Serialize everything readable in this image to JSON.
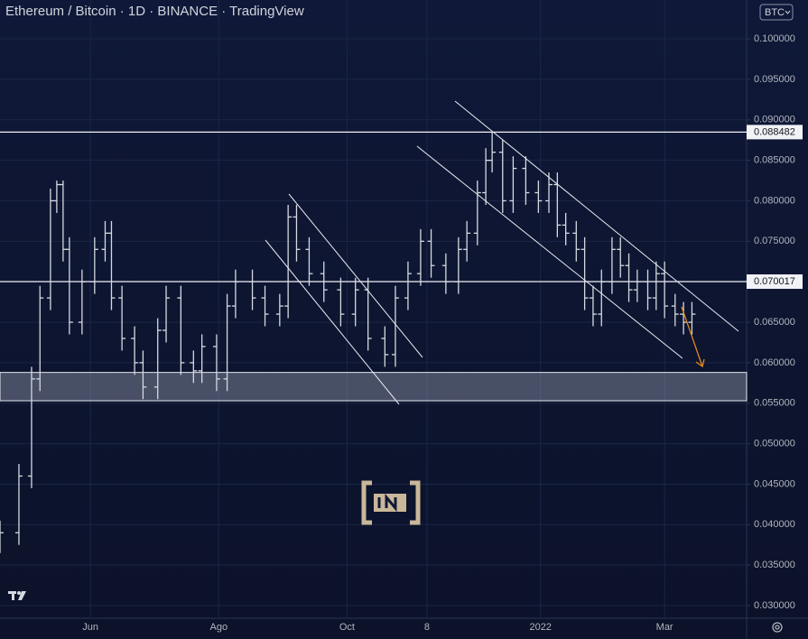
{
  "chart_data": {
    "type": "ohlc",
    "title": "Ethereum / Bitcoin · 1D · BINANCE · TradingView",
    "currency": "BTC",
    "color": "#d6d9e0",
    "grid": true,
    "xlim": [
      0,
      355
    ],
    "xticks": [
      {
        "value": 43,
        "label": "Jun"
      },
      {
        "value": 104,
        "label": "Ago"
      },
      {
        "value": 165,
        "label": "Oct"
      },
      {
        "value": 203,
        "label": "8"
      },
      {
        "value": 257,
        "label": "2022"
      },
      {
        "value": 316,
        "label": "Mar"
      }
    ],
    "ylim": [
      0.02844,
      0.1048
    ],
    "yticks": [
      {
        "value": 0.03,
        "label": "0.030000"
      },
      {
        "value": 0.035,
        "label": "0.035000"
      },
      {
        "value": 0.04,
        "label": "0.040000"
      },
      {
        "value": 0.045,
        "label": "0.045000"
      },
      {
        "value": 0.05,
        "label": "0.050000"
      },
      {
        "value": 0.055,
        "label": "0.055000"
      },
      {
        "value": 0.06,
        "label": "0.060000"
      },
      {
        "value": 0.065,
        "label": "0.065000"
      },
      {
        "value": 0.07,
        "label": "0.070000"
      },
      {
        "value": 0.075,
        "label": "0.075000"
      },
      {
        "value": 0.08,
        "label": "0.080000"
      },
      {
        "value": 0.085,
        "label": "0.085000"
      },
      {
        "value": 0.09,
        "label": "0.090000"
      },
      {
        "value": 0.095,
        "label": "0.095000"
      },
      {
        "value": 0.1,
        "label": "0.100000"
      }
    ],
    "levels": [
      {
        "value": 0.088482,
        "label": "0.088482"
      },
      {
        "value": 0.070017,
        "label": "0.070017"
      }
    ],
    "zone": [
      0.0553,
      0.0588
    ],
    "x": [
      0,
      9,
      15,
      19,
      24,
      27,
      30,
      33,
      39,
      45,
      50,
      53,
      58,
      64,
      68,
      75,
      79,
      86,
      92,
      96,
      103,
      108,
      112,
      120,
      126,
      133,
      137,
      141,
      147,
      154,
      162,
      169,
      175,
      183,
      188,
      194,
      200,
      205,
      212,
      218,
      222,
      227,
      231,
      234,
      239,
      244,
      250,
      256,
      261,
      265,
      269,
      274,
      278,
      282,
      286,
      291,
      295,
      299,
      303,
      308,
      312,
      316,
      321,
      325,
      329
    ],
    "open": [
      0.038,
      0.039,
      0.046,
      0.058,
      0.068,
      0.08,
      0.082,
      0.074,
      0.065,
      0.07,
      0.074,
      0.076,
      0.068,
      0.063,
      0.06,
      0.057,
      0.064,
      0.068,
      0.06,
      0.059,
      0.062,
      0.058,
      0.067,
      0.07,
      0.068,
      0.066,
      0.067,
      0.078,
      0.074,
      0.071,
      0.069,
      0.066,
      0.069,
      0.063,
      0.061,
      0.068,
      0.071,
      0.075,
      0.072,
      0.07,
      0.074,
      0.076,
      0.081,
      0.085,
      0.086,
      0.08,
      0.084,
      0.081,
      0.08,
      0.082,
      0.077,
      0.076,
      0.074,
      0.068,
      0.066,
      0.07,
      0.074,
      0.072,
      0.069,
      0.07,
      0.068,
      0.071,
      0.067,
      0.066,
      0.065
    ],
    "high": [
      0.0405,
      0.0475,
      0.0595,
      0.0695,
      0.0815,
      0.0825,
      0.0825,
      0.0755,
      0.0715,
      0.0755,
      0.0775,
      0.0775,
      0.0695,
      0.0645,
      0.0615,
      0.0655,
      0.0695,
      0.0695,
      0.0615,
      0.0635,
      0.0635,
      0.0685,
      0.0715,
      0.0715,
      0.0695,
      0.0685,
      0.0795,
      0.0795,
      0.0755,
      0.0725,
      0.0705,
      0.0705,
      0.0705,
      0.0645,
      0.0695,
      0.0725,
      0.0765,
      0.0765,
      0.0735,
      0.0755,
      0.0775,
      0.0825,
      0.0865,
      0.0885,
      0.0875,
      0.0855,
      0.0855,
      0.0825,
      0.0835,
      0.0835,
      0.0785,
      0.0775,
      0.0755,
      0.0695,
      0.0715,
      0.0755,
      0.0755,
      0.0735,
      0.0715,
      0.0715,
      0.0725,
      0.0725,
      0.0685,
      0.0675,
      0.0675
    ],
    "low": [
      0.0365,
      0.0375,
      0.0445,
      0.0565,
      0.0665,
      0.0785,
      0.0725,
      0.0635,
      0.0635,
      0.0685,
      0.0725,
      0.0665,
      0.0615,
      0.0585,
      0.0555,
      0.0555,
      0.0625,
      0.0585,
      0.0575,
      0.0575,
      0.0565,
      0.0565,
      0.0655,
      0.0665,
      0.0645,
      0.0645,
      0.0655,
      0.0725,
      0.0695,
      0.0675,
      0.0645,
      0.0645,
      0.0615,
      0.0595,
      0.0595,
      0.0665,
      0.0695,
      0.0705,
      0.0685,
      0.0685,
      0.0725,
      0.0745,
      0.0795,
      0.0835,
      0.0785,
      0.0785,
      0.0795,
      0.0785,
      0.0785,
      0.0755,
      0.0745,
      0.0725,
      0.0665,
      0.0645,
      0.0645,
      0.0685,
      0.0705,
      0.0675,
      0.0675,
      0.0665,
      0.0665,
      0.0655,
      0.0645,
      0.0635,
      0.0635
    ],
    "close": [
      0.039,
      0.046,
      0.058,
      0.068,
      0.08,
      0.082,
      0.074,
      0.065,
      0.07,
      0.074,
      0.076,
      0.068,
      0.063,
      0.06,
      0.057,
      0.064,
      0.068,
      0.06,
      0.059,
      0.062,
      0.058,
      0.067,
      0.07,
      0.068,
      0.066,
      0.067,
      0.078,
      0.074,
      0.071,
      0.069,
      0.066,
      0.069,
      0.063,
      0.061,
      0.068,
      0.071,
      0.075,
      0.072,
      0.07,
      0.074,
      0.076,
      0.081,
      0.085,
      0.086,
      0.08,
      0.084,
      0.081,
      0.08,
      0.082,
      0.077,
      0.076,
      0.074,
      0.068,
      0.066,
      0.07,
      0.074,
      0.072,
      0.069,
      0.07,
      0.068,
      0.071,
      0.067,
      0.066,
      0.065,
      0.066
    ]
  }
}
